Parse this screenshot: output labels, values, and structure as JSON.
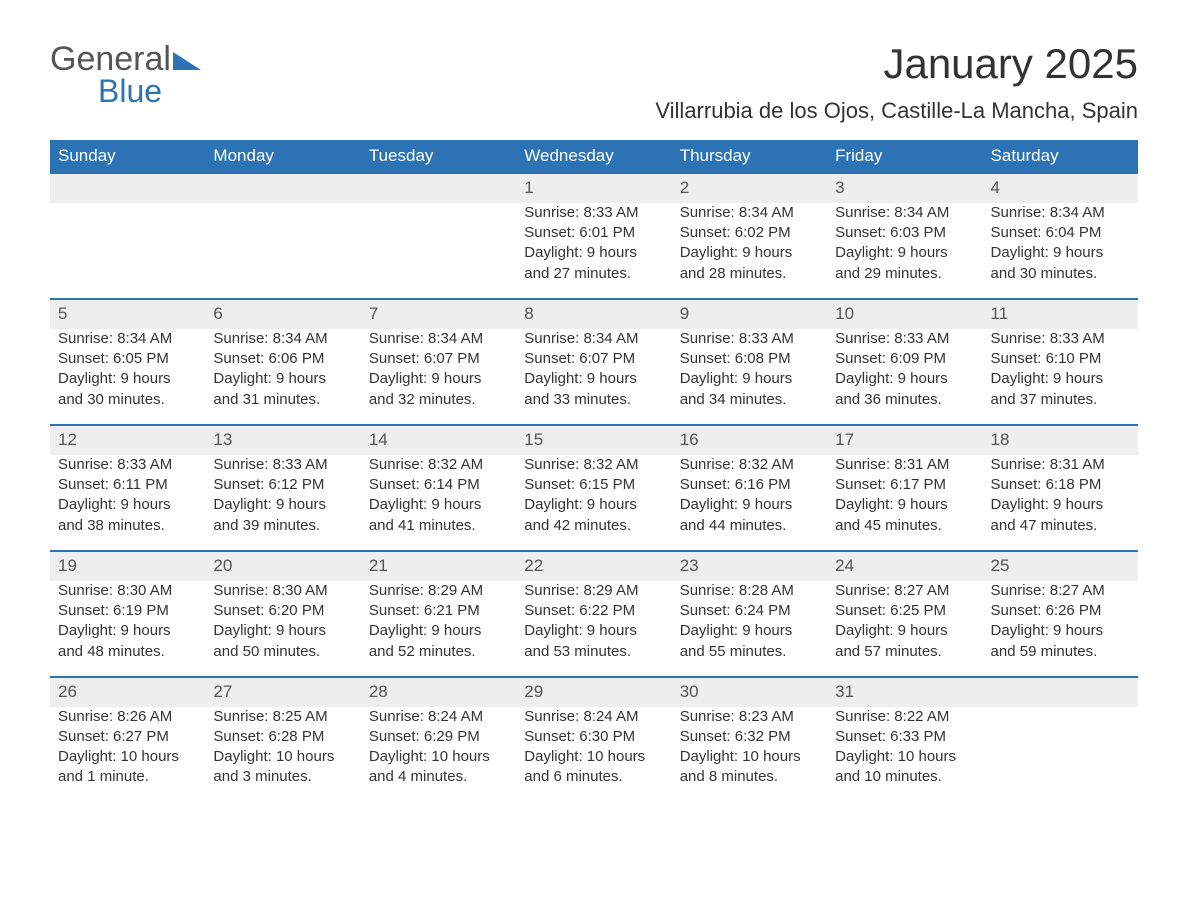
{
  "brand": {
    "general": "General",
    "blue": "Blue"
  },
  "title": "January 2025",
  "location": "Villarrubia de los Ojos, Castille-La Mancha, Spain",
  "colors": {
    "header_bg": "#2b73b5",
    "header_text": "#ffffff",
    "daynum_bg": "#eeeeee",
    "daynum_border": "#2b73b5",
    "body_text": "#333333",
    "page_bg": "#ffffff"
  },
  "typography": {
    "title_fontsize": 42,
    "location_fontsize": 22,
    "header_fontsize": 17,
    "cell_fontsize": 15,
    "font_family": "Arial"
  },
  "day_headers": [
    "Sunday",
    "Monday",
    "Tuesday",
    "Wednesday",
    "Thursday",
    "Friday",
    "Saturday"
  ],
  "weeks": [
    [
      null,
      null,
      null,
      {
        "n": "1",
        "sunrise": "Sunrise: 8:33 AM",
        "sunset": "Sunset: 6:01 PM",
        "daylight": "Daylight: 9 hours and 27 minutes."
      },
      {
        "n": "2",
        "sunrise": "Sunrise: 8:34 AM",
        "sunset": "Sunset: 6:02 PM",
        "daylight": "Daylight: 9 hours and 28 minutes."
      },
      {
        "n": "3",
        "sunrise": "Sunrise: 8:34 AM",
        "sunset": "Sunset: 6:03 PM",
        "daylight": "Daylight: 9 hours and 29 minutes."
      },
      {
        "n": "4",
        "sunrise": "Sunrise: 8:34 AM",
        "sunset": "Sunset: 6:04 PM",
        "daylight": "Daylight: 9 hours and 30 minutes."
      }
    ],
    [
      {
        "n": "5",
        "sunrise": "Sunrise: 8:34 AM",
        "sunset": "Sunset: 6:05 PM",
        "daylight": "Daylight: 9 hours and 30 minutes."
      },
      {
        "n": "6",
        "sunrise": "Sunrise: 8:34 AM",
        "sunset": "Sunset: 6:06 PM",
        "daylight": "Daylight: 9 hours and 31 minutes."
      },
      {
        "n": "7",
        "sunrise": "Sunrise: 8:34 AM",
        "sunset": "Sunset: 6:07 PM",
        "daylight": "Daylight: 9 hours and 32 minutes."
      },
      {
        "n": "8",
        "sunrise": "Sunrise: 8:34 AM",
        "sunset": "Sunset: 6:07 PM",
        "daylight": "Daylight: 9 hours and 33 minutes."
      },
      {
        "n": "9",
        "sunrise": "Sunrise: 8:33 AM",
        "sunset": "Sunset: 6:08 PM",
        "daylight": "Daylight: 9 hours and 34 minutes."
      },
      {
        "n": "10",
        "sunrise": "Sunrise: 8:33 AM",
        "sunset": "Sunset: 6:09 PM",
        "daylight": "Daylight: 9 hours and 36 minutes."
      },
      {
        "n": "11",
        "sunrise": "Sunrise: 8:33 AM",
        "sunset": "Sunset: 6:10 PM",
        "daylight": "Daylight: 9 hours and 37 minutes."
      }
    ],
    [
      {
        "n": "12",
        "sunrise": "Sunrise: 8:33 AM",
        "sunset": "Sunset: 6:11 PM",
        "daylight": "Daylight: 9 hours and 38 minutes."
      },
      {
        "n": "13",
        "sunrise": "Sunrise: 8:33 AM",
        "sunset": "Sunset: 6:12 PM",
        "daylight": "Daylight: 9 hours and 39 minutes."
      },
      {
        "n": "14",
        "sunrise": "Sunrise: 8:32 AM",
        "sunset": "Sunset: 6:14 PM",
        "daylight": "Daylight: 9 hours and 41 minutes."
      },
      {
        "n": "15",
        "sunrise": "Sunrise: 8:32 AM",
        "sunset": "Sunset: 6:15 PM",
        "daylight": "Daylight: 9 hours and 42 minutes."
      },
      {
        "n": "16",
        "sunrise": "Sunrise: 8:32 AM",
        "sunset": "Sunset: 6:16 PM",
        "daylight": "Daylight: 9 hours and 44 minutes."
      },
      {
        "n": "17",
        "sunrise": "Sunrise: 8:31 AM",
        "sunset": "Sunset: 6:17 PM",
        "daylight": "Daylight: 9 hours and 45 minutes."
      },
      {
        "n": "18",
        "sunrise": "Sunrise: 8:31 AM",
        "sunset": "Sunset: 6:18 PM",
        "daylight": "Daylight: 9 hours and 47 minutes."
      }
    ],
    [
      {
        "n": "19",
        "sunrise": "Sunrise: 8:30 AM",
        "sunset": "Sunset: 6:19 PM",
        "daylight": "Daylight: 9 hours and 48 minutes."
      },
      {
        "n": "20",
        "sunrise": "Sunrise: 8:30 AM",
        "sunset": "Sunset: 6:20 PM",
        "daylight": "Daylight: 9 hours and 50 minutes."
      },
      {
        "n": "21",
        "sunrise": "Sunrise: 8:29 AM",
        "sunset": "Sunset: 6:21 PM",
        "daylight": "Daylight: 9 hours and 52 minutes."
      },
      {
        "n": "22",
        "sunrise": "Sunrise: 8:29 AM",
        "sunset": "Sunset: 6:22 PM",
        "daylight": "Daylight: 9 hours and 53 minutes."
      },
      {
        "n": "23",
        "sunrise": "Sunrise: 8:28 AM",
        "sunset": "Sunset: 6:24 PM",
        "daylight": "Daylight: 9 hours and 55 minutes."
      },
      {
        "n": "24",
        "sunrise": "Sunrise: 8:27 AM",
        "sunset": "Sunset: 6:25 PM",
        "daylight": "Daylight: 9 hours and 57 minutes."
      },
      {
        "n": "25",
        "sunrise": "Sunrise: 8:27 AM",
        "sunset": "Sunset: 6:26 PM",
        "daylight": "Daylight: 9 hours and 59 minutes."
      }
    ],
    [
      {
        "n": "26",
        "sunrise": "Sunrise: 8:26 AM",
        "sunset": "Sunset: 6:27 PM",
        "daylight": "Daylight: 10 hours and 1 minute."
      },
      {
        "n": "27",
        "sunrise": "Sunrise: 8:25 AM",
        "sunset": "Sunset: 6:28 PM",
        "daylight": "Daylight: 10 hours and 3 minutes."
      },
      {
        "n": "28",
        "sunrise": "Sunrise: 8:24 AM",
        "sunset": "Sunset: 6:29 PM",
        "daylight": "Daylight: 10 hours and 4 minutes."
      },
      {
        "n": "29",
        "sunrise": "Sunrise: 8:24 AM",
        "sunset": "Sunset: 6:30 PM",
        "daylight": "Daylight: 10 hours and 6 minutes."
      },
      {
        "n": "30",
        "sunrise": "Sunrise: 8:23 AM",
        "sunset": "Sunset: 6:32 PM",
        "daylight": "Daylight: 10 hours and 8 minutes."
      },
      {
        "n": "31",
        "sunrise": "Sunrise: 8:22 AM",
        "sunset": "Sunset: 6:33 PM",
        "daylight": "Daylight: 10 hours and 10 minutes."
      },
      null
    ]
  ]
}
